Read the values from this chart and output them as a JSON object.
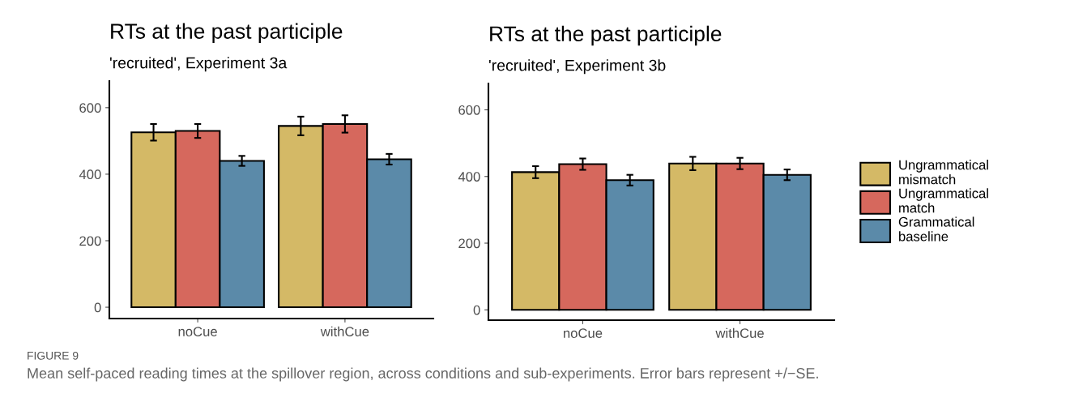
{
  "chart_data": [
    {
      "type": "bar",
      "title": "RTs at the past participle",
      "subtitle": "'recruited', Experiment 3a",
      "categories": [
        "noCue",
        "withCue"
      ],
      "ylim": [
        -34,
        680
      ],
      "yticks": [
        0,
        200,
        400,
        600
      ],
      "grid": false,
      "legend": false,
      "series": [
        {
          "color": "#d4b966",
          "values": [
            526,
            545
          ],
          "errors": [
            25,
            28
          ]
        },
        {
          "color": "#d6685d",
          "values": [
            530,
            551
          ],
          "errors": [
            21,
            26
          ]
        },
        {
          "color": "#5b8aa9",
          "values": [
            440,
            445
          ],
          "errors": [
            15,
            16
          ]
        }
      ],
      "annotations": [
        "FIGURE 9",
        "Mean self-paced reading times at the spillover region, across conditions and sub-experiments. Error bars represent +/−SE."
      ]
    },
    {
      "type": "bar",
      "title": "RTs at the past participle",
      "subtitle": "'recruited', Experiment 3b",
      "categories": [
        "noCue",
        "withCue"
      ],
      "ylim": [
        -31,
        679
      ],
      "yticks": [
        0,
        200,
        400,
        600
      ],
      "grid": false,
      "legend": "right",
      "series": [
        {
          "name": "Ungrammatical\nmismatch",
          "color": "#d4b966",
          "values": [
            413,
            439
          ],
          "errors": [
            18,
            20
          ]
        },
        {
          "name": "Ungrammatical\nmatch",
          "color": "#d6685d",
          "values": [
            437,
            439
          ],
          "errors": [
            17,
            17
          ]
        },
        {
          "name": "Grammatical\nbaseline",
          "color": "#5b8aa9",
          "values": [
            389,
            405
          ],
          "errors": [
            16,
            16
          ]
        }
      ]
    }
  ]
}
